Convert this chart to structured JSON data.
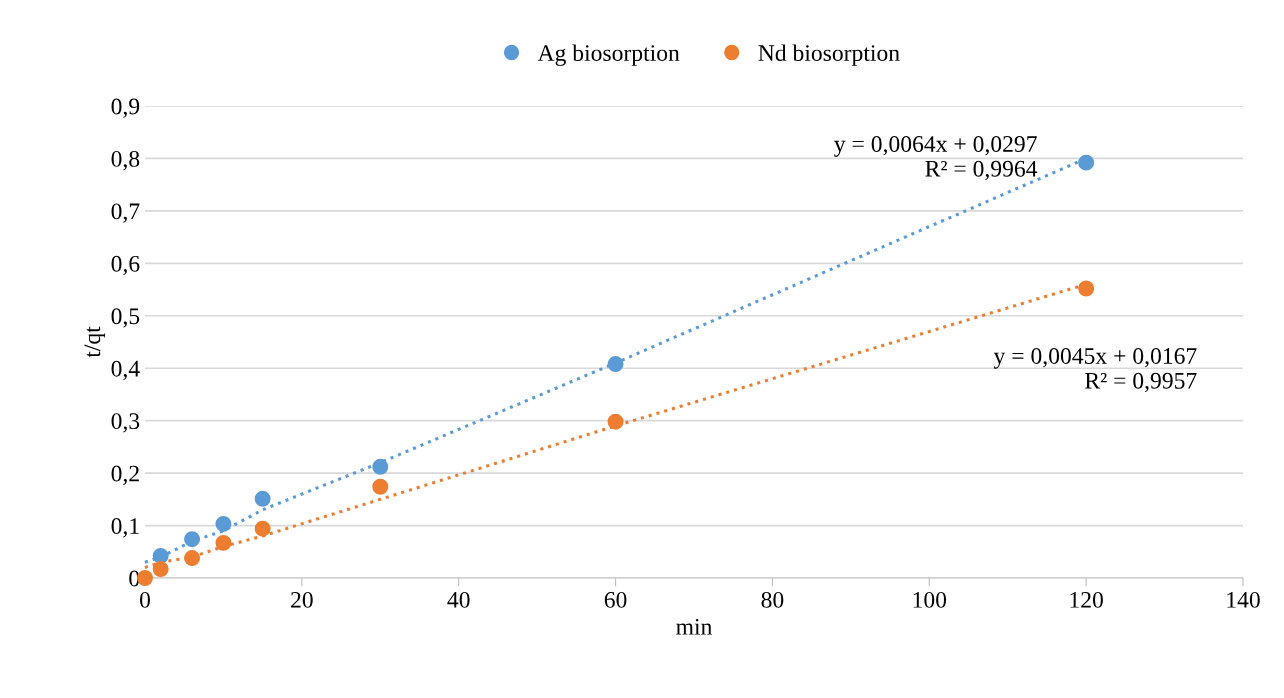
{
  "chart_data": {
    "type": "scatter",
    "xlabel": "min",
    "ylabel": "t/qt",
    "x": [
      0,
      2,
      6,
      10,
      15,
      30,
      60,
      120
    ],
    "series": [
      {
        "name": "Ag biosorption",
        "color": "#5b9bd5",
        "values": [
          null,
          0.042,
          0.074,
          0.103,
          0.151,
          0.212,
          0.408,
          0.792
        ]
      },
      {
        "name": "Nd biosorption",
        "color": "#ed7d31",
        "values": [
          0,
          0.017,
          0.038,
          0.067,
          0.094,
          0.174,
          0.298,
          0.552
        ]
      },
      {
        "type": "line",
        "color": "#5b9bd5",
        "values": [
          0.03,
          0.04,
          0.07,
          0.09,
          0.13,
          0.22,
          0.41,
          0.8
        ],
        "line_style": "dotted",
        "marker": "none"
      },
      {
        "type": "line",
        "color": "#ed7d31",
        "values": [
          0.02,
          0.03,
          0.04,
          0.06,
          0.08,
          0.15,
          0.29,
          0.56
        ],
        "line_style": "dotted",
        "marker": "none"
      }
    ],
    "annotations": [
      "y = 0,0064x + 0,0297\nR² = 0,9964",
      "y = 0,0045x + 0,0167\nR² = 0,9957"
    ],
    "xlim": [
      0,
      140
    ],
    "xticks": [
      0,
      20,
      40,
      60,
      80,
      100,
      120,
      140
    ],
    "ylim": [
      0,
      0.9
    ],
    "yticks": [
      0,
      {
        "value": 0.1,
        "label": "0,1"
      },
      {
        "value": 0.2,
        "label": "0,2"
      },
      {
        "value": 0.3,
        "label": "0,3"
      },
      {
        "value": 0.4,
        "label": "0,4"
      },
      {
        "value": 0.5,
        "label": "0,5"
      },
      {
        "value": 0.6,
        "label": "0,6"
      },
      {
        "value": 0.7,
        "label": "0,7"
      },
      {
        "value": 0.8,
        "label": "0,8"
      },
      {
        "value": 0.9,
        "label": "0,9"
      }
    ],
    "grid": "y",
    "legend": "top",
    "marker": "circle"
  }
}
